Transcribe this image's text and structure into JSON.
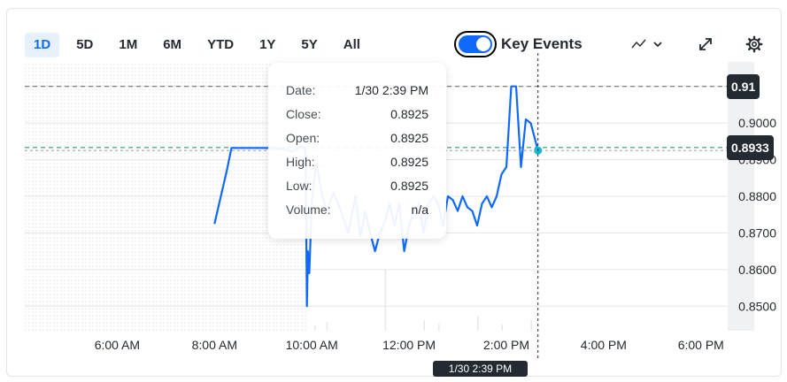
{
  "range_tabs": [
    "1D",
    "5D",
    "1M",
    "6M",
    "YTD",
    "1Y",
    "5Y",
    "All"
  ],
  "active_range": "1D",
  "key_events": {
    "label": "Key Events",
    "enabled": true
  },
  "tooltip": {
    "rows": [
      {
        "label": "Date:",
        "value": "1/30 2:39 PM"
      },
      {
        "label": "Close:",
        "value": "0.8925"
      },
      {
        "label": "Open:",
        "value": "0.8925"
      },
      {
        "label": "High:",
        "value": "0.8925"
      },
      {
        "label": "Low:",
        "value": "0.8925"
      },
      {
        "label": "Volume:",
        "value": "n/a"
      }
    ]
  },
  "crosshair_date_label": "1/30 2:39 PM",
  "prev_close_tag": "0.91",
  "current_price_tag": "0.8933",
  "colors": {
    "line": "#0f69ff",
    "marker": "#00b8d9",
    "prev_close_tag": "#232a31",
    "current_tag": "#232a31",
    "green_line": "#0e8f5f",
    "active_tab": "#0f69ff"
  },
  "icons": [
    "chart-type-icon",
    "chevron-down-icon",
    "expand-icon",
    "gear-icon"
  ],
  "chart_data": {
    "type": "line",
    "x_tick_labels": [
      "6:00 AM",
      "8:00 AM",
      "10:00 AM",
      "12:00 PM",
      "2:00 PM",
      "4:00 PM",
      "6:00 PM"
    ],
    "x_tick_hours": [
      6,
      8,
      10,
      12,
      14,
      16,
      18
    ],
    "y_tick_labels": [
      "0.9000",
      "0.8900",
      "0.8800",
      "0.8700",
      "0.8600",
      "0.8500"
    ],
    "y_tick_values": [
      0.91,
      0.9,
      0.89,
      0.88,
      0.87,
      0.86,
      0.85
    ],
    "xlim_hours": [
      4.1,
      18.55
    ],
    "ylim": [
      0.8433,
      0.9167
    ],
    "previous_close": 0.91,
    "current_price": 0.8933,
    "crosshair_hour": 14.65,
    "series": [
      {
        "x": [
          8.0,
          8.25,
          8.35,
          8.5,
          9.0,
          9.4,
          9.6,
          9.75,
          9.8,
          9.87,
          9.9,
          9.92,
          9.95,
          10.0,
          10.05,
          10.1,
          10.2,
          10.3,
          10.45,
          10.6,
          10.75,
          10.9,
          11.0,
          11.1,
          11.2,
          11.3,
          11.4,
          11.5,
          11.6,
          11.7,
          11.8,
          11.9,
          12.0,
          12.1,
          12.2,
          12.3,
          12.4,
          12.5,
          12.6,
          12.7,
          12.8,
          12.9,
          13.0,
          13.1,
          13.2,
          13.3,
          13.4,
          13.5,
          13.6,
          13.7,
          13.8,
          13.9,
          14.0,
          14.1,
          14.2,
          14.3,
          14.4,
          14.5,
          14.65
        ],
        "y": [
          0.8725,
          0.8868,
          0.8932,
          0.8932,
          0.8932,
          0.893,
          0.8922,
          0.8935,
          0.8935,
          0.8928,
          0.85,
          0.865,
          0.859,
          0.878,
          0.885,
          0.889,
          0.881,
          0.876,
          0.881,
          0.876,
          0.87,
          0.88,
          0.869,
          0.876,
          0.87,
          0.865,
          0.87,
          0.873,
          0.878,
          0.872,
          0.878,
          0.865,
          0.872,
          0.876,
          0.878,
          0.87,
          0.878,
          0.88,
          0.878,
          0.872,
          0.88,
          0.879,
          0.876,
          0.88,
          0.877,
          0.876,
          0.872,
          0.878,
          0.88,
          0.877,
          0.88,
          0.886,
          0.888,
          0.91,
          0.91,
          0.888,
          0.901,
          0.9,
          0.8925
        ]
      }
    ]
  }
}
